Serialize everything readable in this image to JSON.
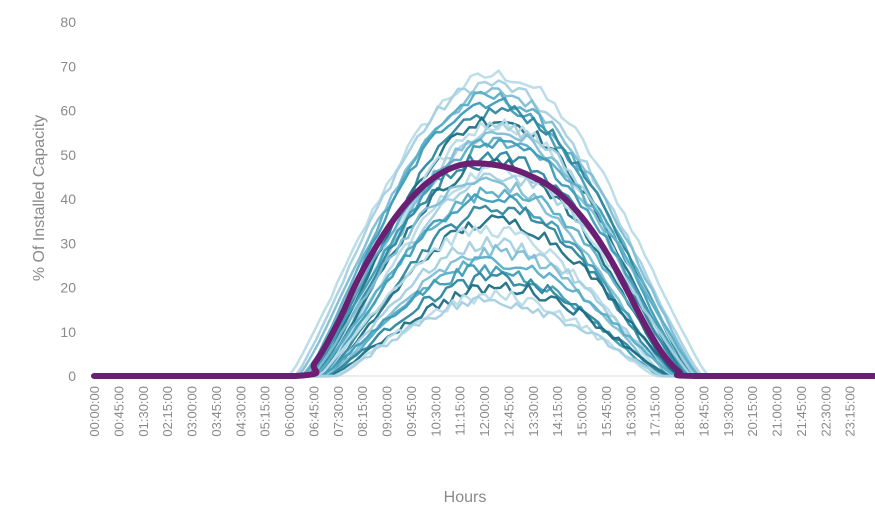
{
  "chart_data": {
    "type": "line",
    "xlabel": "Hours",
    "ylabel": "% Of Installed Capacity",
    "ylim": [
      0,
      80
    ],
    "yticks": [
      0,
      10,
      20,
      30,
      40,
      50,
      60,
      70,
      80
    ],
    "x_tick_labels": [
      "00:00:00",
      "00:45:00",
      "01:30:00",
      "02:15:00",
      "03:00:00",
      "03:45:00",
      "04:30:00",
      "05:15:00",
      "06:00:00",
      "06:45:00",
      "07:30:00",
      "08:15:00",
      "09:00:00",
      "09:45:00",
      "10:30:00",
      "11:15:00",
      "12:00:00",
      "12:45:00",
      "13:30:00",
      "14:15:00",
      "15:00:00",
      "15:45:00",
      "16:30:00",
      "17:15:00",
      "18:00:00",
      "18:45:00",
      "19:30:00",
      "20:15:00",
      "21:00:00",
      "21:45:00",
      "22:30:00",
      "23:15:00"
    ],
    "xlim_hours": [
      0,
      24
    ],
    "grid": false,
    "legend": "none",
    "daily_profiles": {
      "color_palette": [
        "#b9dbe8",
        "#a5d0e0",
        "#7fbed4",
        "#5aaec6",
        "#3f9db7",
        "#2f889f",
        "#1f6f85"
      ],
      "peaks": [
        68,
        66,
        64,
        63,
        62,
        60,
        58,
        57,
        56,
        55,
        53,
        52,
        50,
        48,
        47,
        45,
        44,
        42,
        40,
        38,
        35,
        33,
        30,
        28,
        26,
        24,
        22,
        20,
        18,
        17
      ],
      "sunrise_hours": [
        6.0,
        6.2,
        6.3,
        6.5,
        6.6,
        6.7,
        6.8,
        6.9,
        7.0,
        7.1,
        6.4,
        6.6,
        6.8,
        6.9,
        7.0,
        7.1,
        6.7,
        6.8,
        7.0,
        7.1,
        7.2,
        6.9,
        7.1,
        7.2,
        7.3,
        7.0,
        7.2,
        7.3,
        7.4,
        7.5
      ],
      "sunset_hours": [
        18.9,
        18.7,
        18.6,
        18.5,
        18.3,
        18.4,
        18.2,
        18.0,
        18.5,
        18.1,
        18.6,
        18.3,
        18.2,
        17.9,
        18.0,
        18.4,
        17.8,
        18.1,
        17.9,
        17.7,
        18.0,
        17.6,
        17.8,
        17.5,
        17.9,
        17.4,
        17.6,
        17.7,
        17.3,
        17.5
      ]
    },
    "average_profile": {
      "color": "#6b1f73",
      "x_hours": [
        0,
        6.2,
        6.8,
        7.5,
        8.0,
        8.5,
        9.0,
        9.5,
        10.0,
        10.5,
        11.0,
        11.5,
        12.0,
        12.5,
        13.0,
        13.5,
        14.0,
        14.5,
        15.0,
        15.5,
        16.0,
        16.5,
        17.0,
        17.5,
        18.0,
        18.5,
        24
      ],
      "y": [
        0,
        0,
        3,
        12,
        20,
        27,
        33,
        38,
        42,
        45,
        47,
        48,
        48,
        47.5,
        46.5,
        45,
        43,
        40,
        36,
        31,
        25,
        18,
        11,
        5,
        1,
        0,
        0
      ]
    },
    "axis_color": "#d9d9d9"
  }
}
